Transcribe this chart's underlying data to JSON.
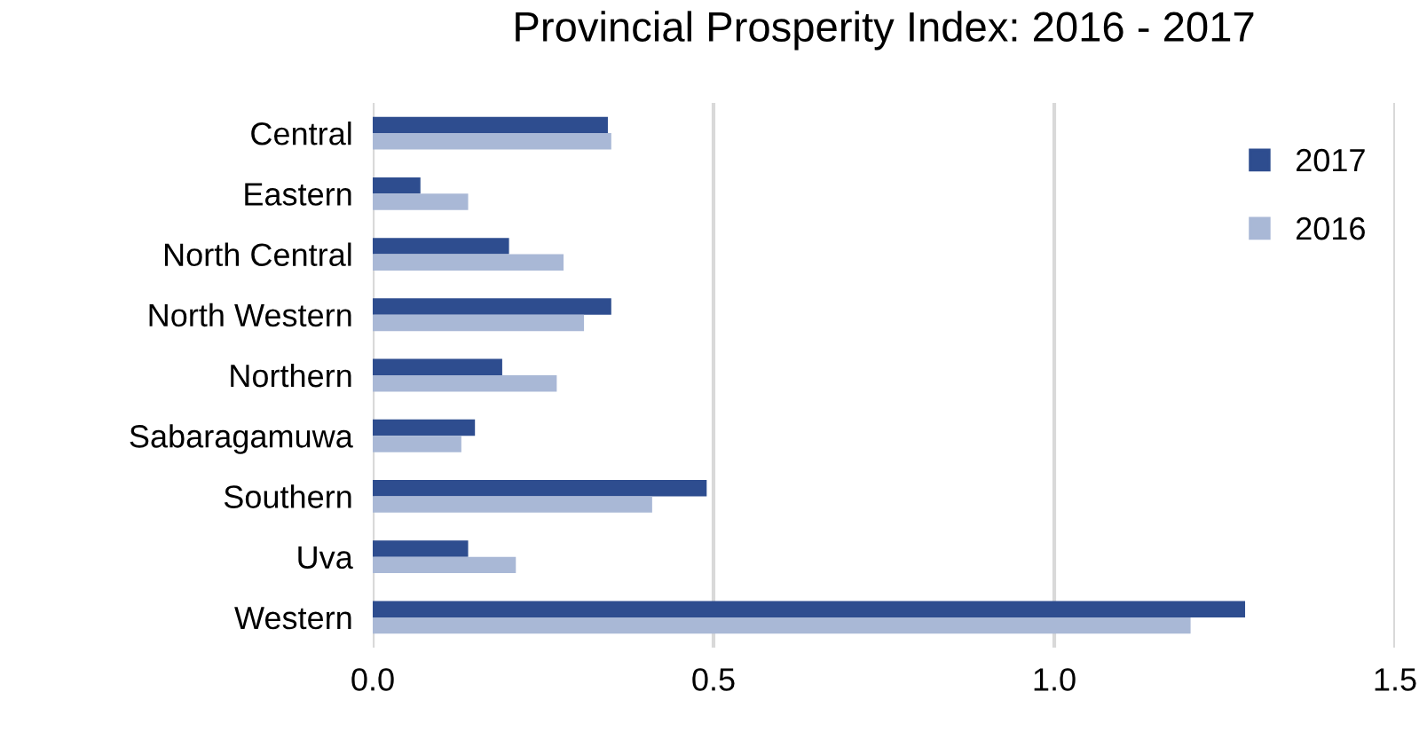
{
  "chart_data": {
    "type": "bar",
    "orientation": "horizontal",
    "title": "Provincial Prosperity Index: 2016 - 2017",
    "categories": [
      "Central",
      "Eastern",
      "North Central",
      "North Western",
      "Northern",
      "Sabaragamuwa",
      "Southern",
      "Uva",
      "Western"
    ],
    "series": [
      {
        "name": "2017",
        "color": "#2e4d8f",
        "values": [
          0.345,
          0.07,
          0.2,
          0.35,
          0.19,
          0.15,
          0.49,
          0.14,
          1.28
        ]
      },
      {
        "name": "2016",
        "color": "#a9b8d6",
        "values": [
          0.35,
          0.14,
          0.28,
          0.31,
          0.27,
          0.13,
          0.41,
          0.21,
          1.2
        ]
      }
    ],
    "xlim": [
      0,
      1.5
    ],
    "xticks": [
      {
        "value": 0,
        "label": "0.0"
      },
      {
        "value": 0.5,
        "label": "0.5"
      },
      {
        "value": 1.0,
        "label": "1.0"
      },
      {
        "value": 1.5,
        "label": "1.5"
      }
    ],
    "grid": "x",
    "legend": "top right"
  }
}
